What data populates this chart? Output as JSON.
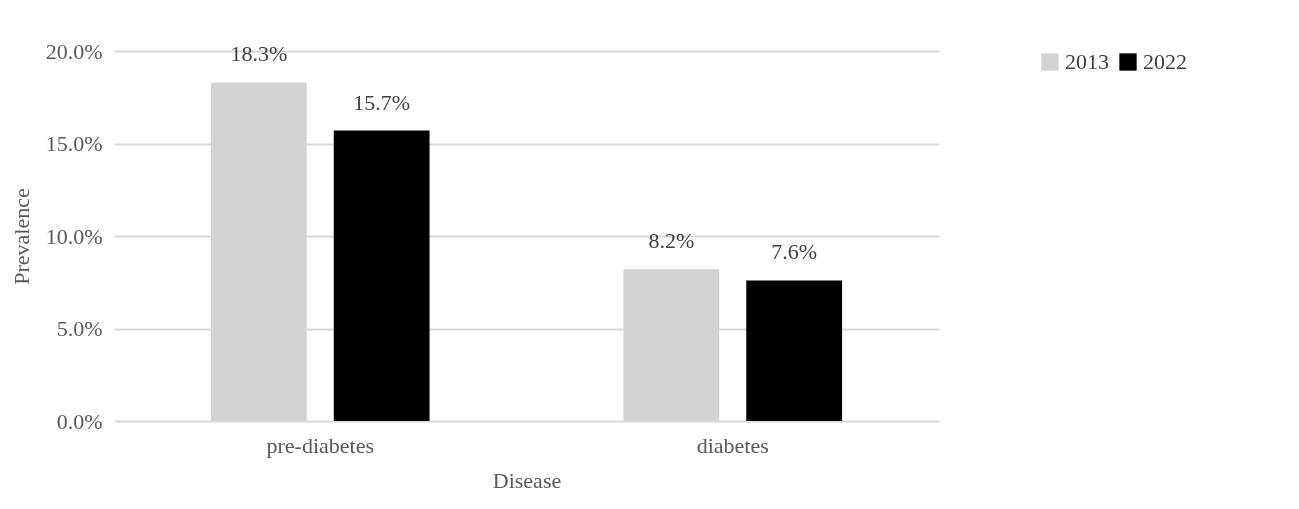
{
  "chart_data": {
    "type": "bar",
    "xlabel": "Disease",
    "ylabel": "Prevalence",
    "categories": [
      "pre-diabetes",
      "diabetes"
    ],
    "series": [
      {
        "name": "2013",
        "color": "#d3d3d3",
        "values": [
          18.3,
          8.2
        ],
        "value_labels": [
          "18.3%",
          "8.2%"
        ]
      },
      {
        "name": "2022",
        "color": "#000000",
        "values": [
          15.7,
          7.6
        ],
        "value_labels": [
          "15.7%",
          "7.6%"
        ]
      }
    ],
    "ylim": [
      0,
      20
    ],
    "yticks": [
      {
        "value": 0,
        "label": "0.0%"
      },
      {
        "value": 5,
        "label": "5.0%"
      },
      {
        "value": 10,
        "label": "10.0%"
      },
      {
        "value": 15,
        "label": "15.0%"
      },
      {
        "value": 20,
        "label": "20.0%"
      }
    ],
    "grid": "y",
    "legend": "top right"
  }
}
